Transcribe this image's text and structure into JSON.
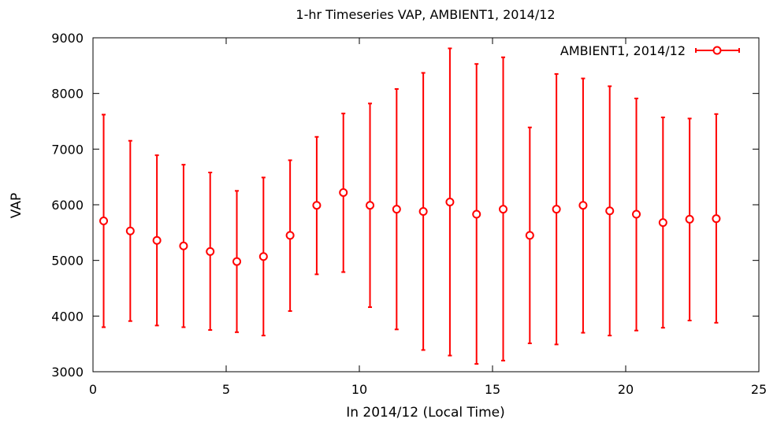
{
  "chart_data": {
    "type": "scatter",
    "title": "1-hr Timeseries VAP, AMBIENT1, 2014/12",
    "xlabel": "In 2014/12 (Local Time)",
    "ylabel": "VAP",
    "xlim": [
      0,
      25
    ],
    "ylim": [
      3000,
      9000
    ],
    "xticks": [
      0,
      5,
      10,
      15,
      20,
      25
    ],
    "yticks": [
      3000,
      4000,
      5000,
      6000,
      7000,
      8000,
      9000
    ],
    "grid": false,
    "legend_position": "top-right",
    "series": [
      {
        "name": "AMBIENT1, 2014/12",
        "color": "#ff0000",
        "marker": "open-circle",
        "error_bars": true,
        "x": [
          0.4,
          1.4,
          2.4,
          3.4,
          4.4,
          5.4,
          6.4,
          7.4,
          8.4,
          9.4,
          10.4,
          11.4,
          12.4,
          13.4,
          14.4,
          15.4,
          16.4,
          17.4,
          18.4,
          19.4,
          20.4,
          21.4,
          22.4,
          23.4
        ],
        "y": [
          5710,
          5530,
          5360,
          5260,
          5160,
          4980,
          5070,
          5450,
          5990,
          6220,
          5990,
          5920,
          5880,
          6050,
          5830,
          5920,
          5450,
          5920,
          5990,
          5890,
          5830,
          5680,
          5740,
          5750
        ],
        "y_low": [
          3800,
          3910,
          3830,
          3800,
          3750,
          3710,
          3650,
          4090,
          4750,
          4790,
          4160,
          3760,
          3390,
          3290,
          3140,
          3200,
          3510,
          3490,
          3700,
          3650,
          3740,
          3790,
          3920,
          3880
        ],
        "y_high": [
          7620,
          7150,
          6890,
          6720,
          6580,
          6250,
          6490,
          6800,
          7220,
          7640,
          7820,
          8080,
          8370,
          8810,
          8530,
          8650,
          7390,
          8350,
          8270,
          8130,
          7910,
          7570,
          7550,
          7630
        ]
      }
    ]
  }
}
